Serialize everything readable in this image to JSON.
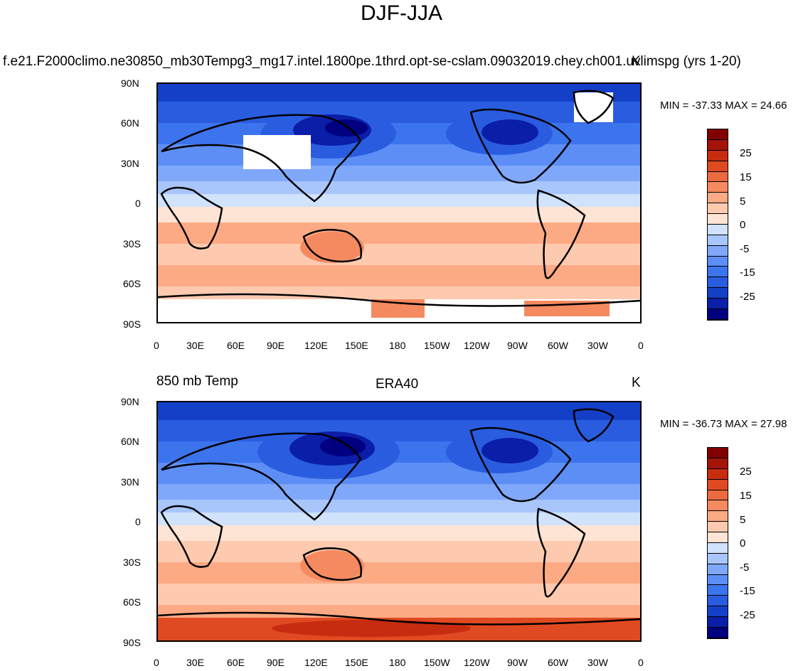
{
  "main_title": "DJF-JJA",
  "colors": {
    "scale": [
      "#000080",
      "#0a1ea8",
      "#1440c8",
      "#2a5ce0",
      "#3c74ee",
      "#5c8ef6",
      "#80a8fa",
      "#a8c6fc",
      "#d0e2fc",
      "#fde4d4",
      "#fdcab0",
      "#fcaa84",
      "#f58a60",
      "#ec6a40",
      "#e04a22",
      "#c82c10",
      "#a41408",
      "#800000"
    ]
  },
  "icons": {
    "land": "coastline-shape"
  },
  "panels": [
    {
      "title": "f.e21.F2000climo.ne30850_mb30Tempg3_mg17.intel.1800pe.1thrd.opt-se-cslam.09032019.chey.ch001.uvlimspg (yrs 1-20)",
      "left_label": "",
      "center_label": "",
      "units": "K",
      "minmax": "MIN = -37.33 MAX =  24.66",
      "lat_labels": [
        "90N",
        "60N",
        "30N",
        "0",
        "30S",
        "60S",
        "90S"
      ],
      "lon_labels": [
        "0",
        "30E",
        "60E",
        "90E",
        "120E",
        "150E",
        "180",
        "150W",
        "120W",
        "90W",
        "60W",
        "30W",
        "0"
      ],
      "colorbar_labels": [
        "25",
        "15",
        "5",
        "0",
        "-5",
        "-15",
        "-25"
      ]
    },
    {
      "title": "",
      "left_label": "850 mb Temp",
      "center_label": "ERA40",
      "units": "K",
      "minmax": "MIN = -36.73 MAX =  27.98",
      "lat_labels": [
        "90N",
        "60N",
        "30N",
        "0",
        "30S",
        "60S",
        "90S"
      ],
      "lon_labels": [
        "0",
        "30E",
        "60E",
        "90E",
        "120E",
        "150E",
        "180",
        "150W",
        "120W",
        "90W",
        "60W",
        "30W",
        "0"
      ],
      "colorbar_labels": [
        "25",
        "15",
        "5",
        "0",
        "-5",
        "-15",
        "-25"
      ]
    }
  ]
}
